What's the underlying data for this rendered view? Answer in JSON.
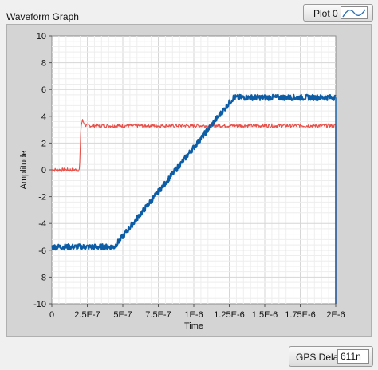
{
  "graph": {
    "title": "Waveform Graph",
    "legend_label": "Plot 0",
    "legend_icon": "line-plot-icon"
  },
  "gps": {
    "label": "GPS Delay",
    "value": "611n"
  },
  "chart_data": {
    "type": "line",
    "xlabel": "Time",
    "ylabel": "Amplitude",
    "xlim": [
      0,
      2e-06
    ],
    "ylim": [
      -10,
      10
    ],
    "grid": true,
    "x_ticks": [
      "0",
      "2.5E-7",
      "5E-7",
      "7.5E-7",
      "1E-6",
      "1.25E-6",
      "1.5E-6",
      "1.75E-6",
      "2E-6"
    ],
    "y_ticks": [
      "10",
      "8",
      "6",
      "4",
      "2",
      "0",
      "-2",
      "-4",
      "-6",
      "-8",
      "-10"
    ],
    "series": [
      {
        "color": "#e8504a",
        "x": [
          0,
          1.95e-07,
          2.05e-07,
          2.15e-07,
          2.4e-07,
          2e-06
        ],
        "y": [
          0,
          0,
          3.2,
          3.7,
          3.3,
          3.3
        ]
      },
      {
        "color": "#0c5da5",
        "x": [
          0,
          4.4e-07,
          1.28e-06,
          2e-06
        ],
        "y": [
          -5.75,
          -5.75,
          5.4,
          5.4
        ]
      }
    ]
  }
}
